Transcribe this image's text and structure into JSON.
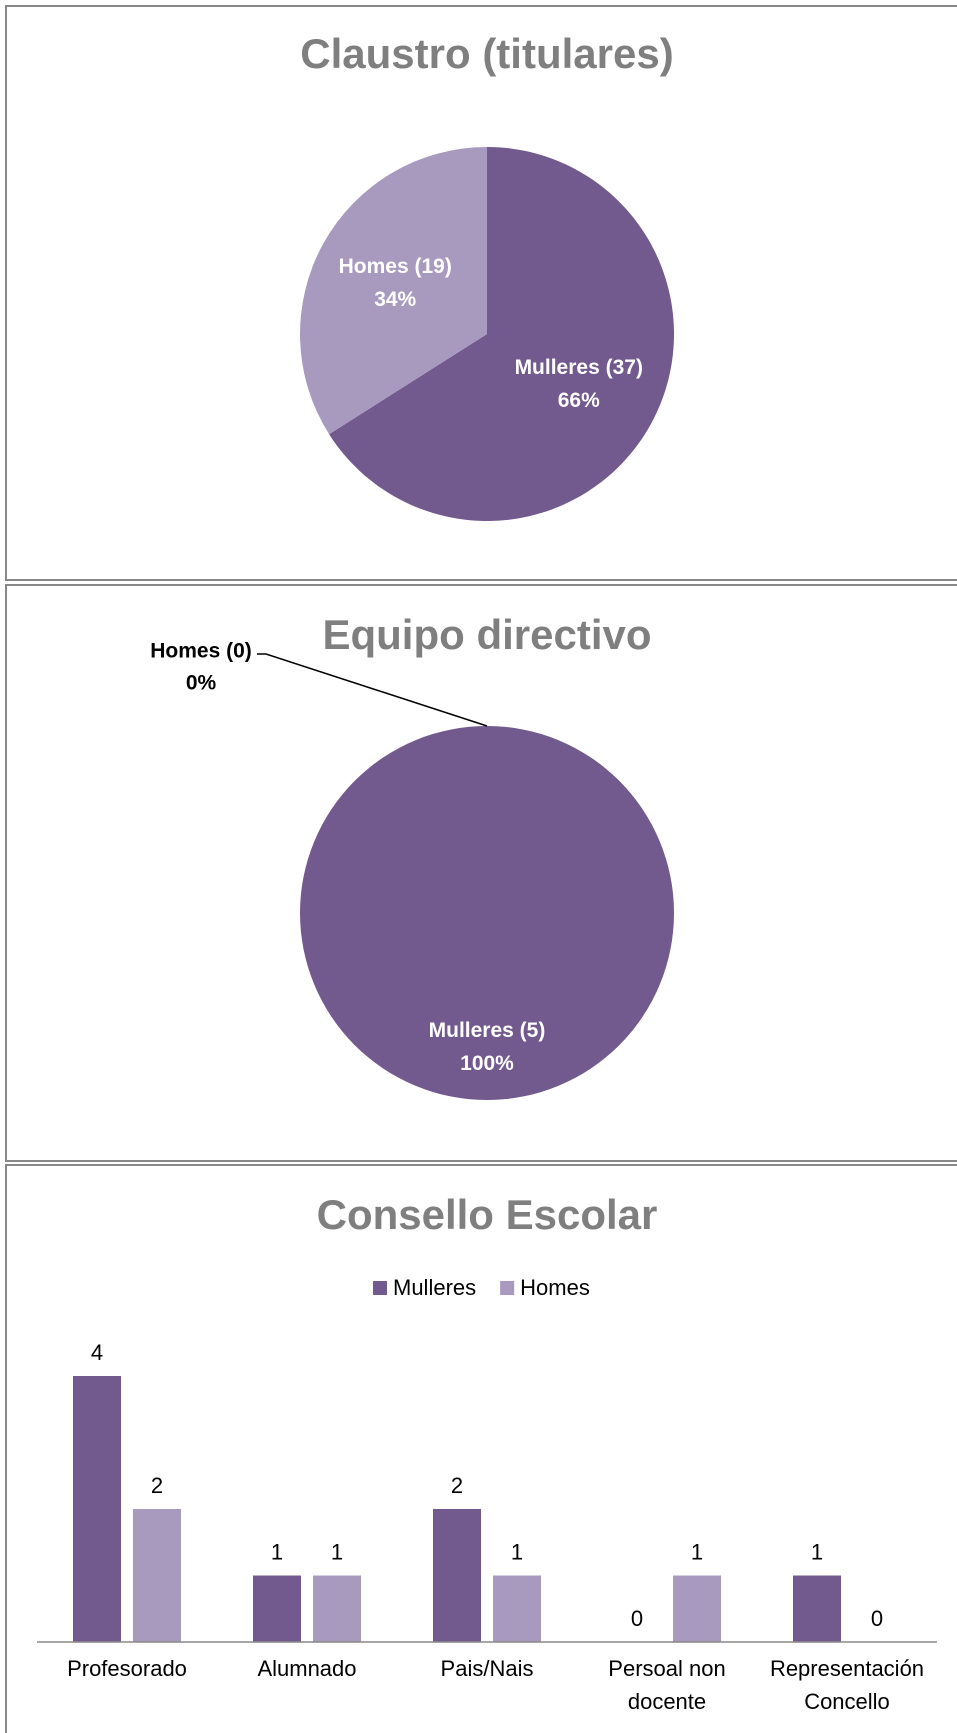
{
  "chart_data": [
    {
      "type": "pie",
      "title": "Claustro (titulares)",
      "categories": [
        "Mulleres (37)",
        "Homes (19)"
      ],
      "values": [
        66,
        34
      ],
      "value_labels": [
        "66%",
        "34%"
      ],
      "colors": [
        "#72598e",
        "#a899bf"
      ]
    },
    {
      "type": "pie",
      "title": "Equipo directivo",
      "categories": [
        "Mulleres (5)",
        "Homes (0)"
      ],
      "values": [
        100,
        0
      ],
      "value_labels": [
        "100%",
        "0%"
      ],
      "colors": [
        "#72598e",
        "#a899bf"
      ]
    },
    {
      "type": "bar",
      "title": "Consello Escolar",
      "categories": [
        "Profesorado",
        "Alumnado",
        "Pais/Nais",
        "Persoal non docente",
        "Representación Concello"
      ],
      "series": [
        {
          "name": "Mulleres",
          "color": "#72598e",
          "values": [
            4,
            1,
            2,
            0,
            1
          ]
        },
        {
          "name": "Homes",
          "color": "#a899bf",
          "values": [
            2,
            1,
            1,
            1,
            0
          ]
        }
      ],
      "ylim": [
        0,
        4
      ],
      "legend": "top"
    }
  ]
}
